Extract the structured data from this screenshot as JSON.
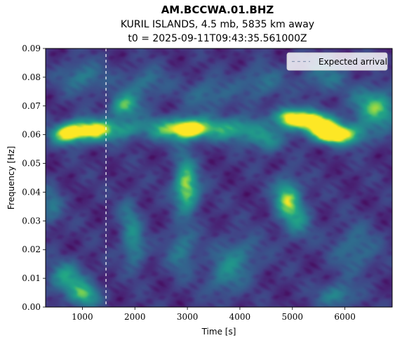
{
  "chart_data": {
    "type": "heatmap",
    "title": "AM.BCCWA.01.BHZ",
    "subtitle_lines": [
      "KURIL ISLANDS, 4.5 mb, 5835 km away",
      "t0 = 2025-09-11T09:43:35.561000Z"
    ],
    "xlabel": "Time [s]",
    "ylabel": "Frequency [Hz]",
    "xlim": [
      300,
      6900
    ],
    "ylim": [
      0.0,
      0.09
    ],
    "x_ticks": [
      1000,
      2000,
      3000,
      4000,
      5000,
      6000
    ],
    "x_tick_labels": [
      "1000",
      "2000",
      "3000",
      "4000",
      "5000",
      "6000"
    ],
    "y_ticks": [
      0.0,
      0.01,
      0.02,
      0.03,
      0.04,
      0.05,
      0.06,
      0.07,
      0.08,
      0.09
    ],
    "y_tick_labels": [
      "0.00",
      "0.01",
      "0.02",
      "0.03",
      "0.04",
      "0.05",
      "0.06",
      "0.07",
      "0.08",
      "0.09"
    ],
    "colormap": "viridis",
    "expected_arrival_time": 1450,
    "legend": {
      "placement": "upper-right",
      "entries": [
        {
          "label": "Expected arrival",
          "style": "dashed",
          "color": "#ffffff"
        }
      ]
    },
    "energy_features": [
      {
        "t": 700,
        "f": 0.06,
        "dt": 220,
        "df": 0.0025,
        "amp": 0.75
      },
      {
        "t": 1000,
        "f": 0.062,
        "dt": 250,
        "df": 0.0025,
        "amp": 0.6
      },
      {
        "t": 1300,
        "f": 0.061,
        "dt": 200,
        "df": 0.003,
        "amp": 0.5
      },
      {
        "t": 1800,
        "f": 0.07,
        "dt": 200,
        "df": 0.003,
        "amp": 0.6
      },
      {
        "t": 1750,
        "f": 0.062,
        "dt": 250,
        "df": 0.0025,
        "amp": 0.45
      },
      {
        "t": 2600,
        "f": 0.062,
        "dt": 350,
        "df": 0.003,
        "amp": 0.55
      },
      {
        "t": 3050,
        "f": 0.062,
        "dt": 220,
        "df": 0.0025,
        "amp": 0.8
      },
      {
        "t": 3600,
        "f": 0.062,
        "dt": 300,
        "df": 0.003,
        "amp": 0.45
      },
      {
        "t": 4100,
        "f": 0.062,
        "dt": 250,
        "df": 0.003,
        "amp": 0.4
      },
      {
        "t": 4500,
        "f": 0.058,
        "dt": 200,
        "df": 0.003,
        "amp": 0.45
      },
      {
        "t": 4900,
        "f": 0.066,
        "dt": 180,
        "df": 0.0025,
        "amp": 0.75
      },
      {
        "t": 5300,
        "f": 0.065,
        "dt": 250,
        "df": 0.0025,
        "amp": 0.7
      },
      {
        "t": 5750,
        "f": 0.06,
        "dt": 220,
        "df": 0.0022,
        "amp": 0.95
      },
      {
        "t": 5550,
        "f": 0.063,
        "dt": 300,
        "df": 0.003,
        "amp": 0.55
      },
      {
        "t": 6200,
        "f": 0.06,
        "dt": 250,
        "df": 0.003,
        "amp": 0.45
      },
      {
        "t": 6700,
        "f": 0.068,
        "dt": 250,
        "df": 0.004,
        "amp": 0.5
      },
      {
        "t": 6450,
        "f": 0.072,
        "dt": 250,
        "df": 0.004,
        "amp": 0.35
      },
      {
        "t": 3000,
        "f": 0.04,
        "dt": 170,
        "df": 0.005,
        "amp": 0.6
      },
      {
        "t": 2950,
        "f": 0.047,
        "dt": 150,
        "df": 0.006,
        "amp": 0.35
      },
      {
        "t": 4900,
        "f": 0.038,
        "dt": 180,
        "df": 0.005,
        "amp": 0.65
      },
      {
        "t": 5100,
        "f": 0.03,
        "dt": 200,
        "df": 0.005,
        "amp": 0.35
      },
      {
        "t": 2900,
        "f": 0.02,
        "dt": 200,
        "df": 0.006,
        "amp": 0.35
      },
      {
        "t": 2000,
        "f": 0.02,
        "dt": 150,
        "df": 0.005,
        "amp": 0.35
      },
      {
        "t": 1900,
        "f": 0.03,
        "dt": 150,
        "df": 0.006,
        "amp": 0.3
      },
      {
        "t": 700,
        "f": 0.01,
        "dt": 250,
        "df": 0.004,
        "amp": 0.5
      },
      {
        "t": 1050,
        "f": 0.004,
        "dt": 200,
        "df": 0.003,
        "amp": 0.55
      },
      {
        "t": 400,
        "f": 0.035,
        "dt": 150,
        "df": 0.005,
        "amp": 0.3
      },
      {
        "t": 5850,
        "f": 0.004,
        "dt": 250,
        "df": 0.003,
        "amp": 0.4
      },
      {
        "t": 4000,
        "f": 0.018,
        "dt": 300,
        "df": 0.005,
        "amp": 0.3
      },
      {
        "t": 6200,
        "f": 0.02,
        "dt": 300,
        "df": 0.006,
        "amp": 0.3
      },
      {
        "t": 1000,
        "f": 0.08,
        "dt": 300,
        "df": 0.004,
        "amp": 0.35
      },
      {
        "t": 2200,
        "f": 0.078,
        "dt": 300,
        "df": 0.004,
        "amp": 0.3
      },
      {
        "t": 3400,
        "f": 0.074,
        "dt": 300,
        "df": 0.004,
        "amp": 0.3
      },
      {
        "t": 4400,
        "f": 0.078,
        "dt": 300,
        "df": 0.004,
        "amp": 0.3
      },
      {
        "t": 5600,
        "f": 0.08,
        "dt": 300,
        "df": 0.004,
        "amp": 0.3
      },
      {
        "t": 3700,
        "f": 0.01,
        "dt": 250,
        "df": 0.005,
        "amp": 0.3
      }
    ]
  }
}
